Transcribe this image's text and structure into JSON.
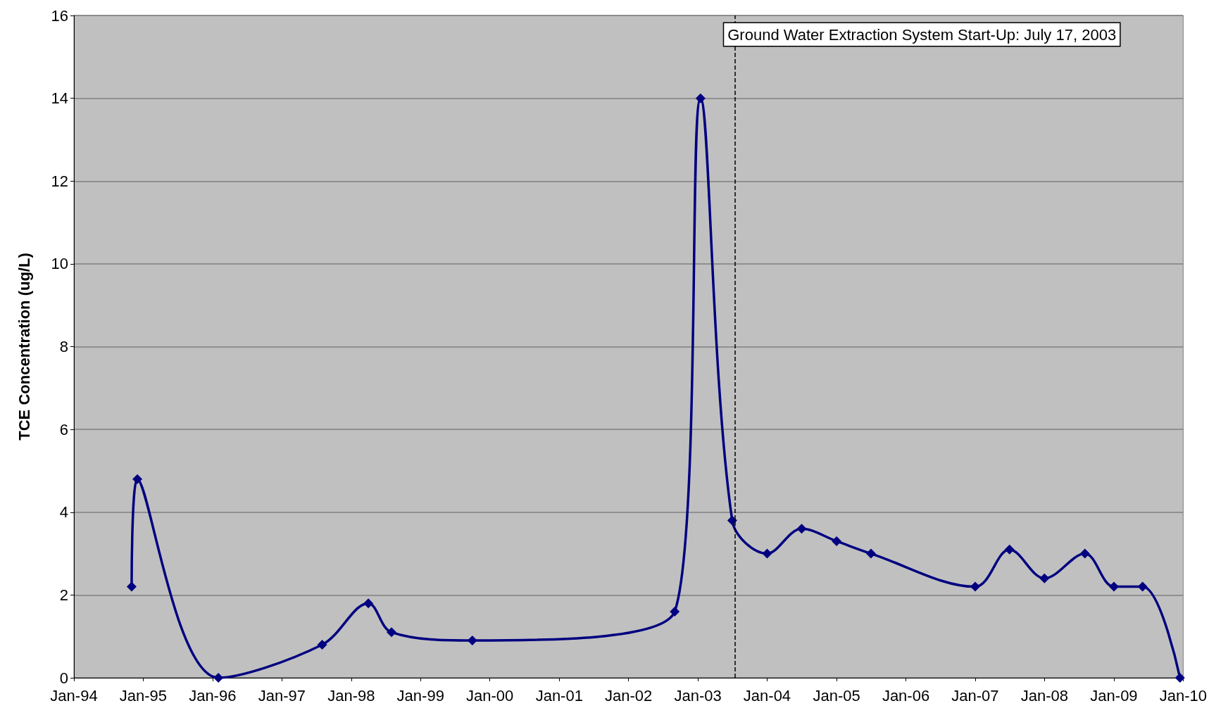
{
  "chart_data": {
    "type": "line",
    "ylabel": "TCE Concentration (ug/L)",
    "x": [
      "1994-11",
      "1994-12",
      "1996-02",
      "1997-08",
      "1998-04",
      "1998-08",
      "1999-10",
      "2002-09",
      "2003-01-15",
      "2003-07",
      "2004-01",
      "2004-07",
      "2005-01",
      "2005-07",
      "2007-01",
      "2007-07",
      "2008-01",
      "2008-08",
      "2009-01",
      "2009-06",
      "2009-12-15"
    ],
    "series": [
      {
        "color": "#000080",
        "values": [
          2.2,
          4.8,
          0,
          0.8,
          1.8,
          1.1,
          0.9,
          1.6,
          14,
          3.8,
          3.0,
          3.6,
          3.3,
          3.0,
          2.2,
          3.1,
          2.4,
          3.0,
          2.2,
          2.2,
          0
        ]
      }
    ],
    "xlim": [
      "1994-01",
      "2010-01"
    ],
    "xticks": [
      {
        "value": "1994-01",
        "label": "Jan-94"
      },
      {
        "value": "1995-01",
        "label": "Jan-95"
      },
      {
        "value": "1996-01",
        "label": "Jan-96"
      },
      {
        "value": "1997-01",
        "label": "Jan-97"
      },
      {
        "value": "1998-01",
        "label": "Jan-98"
      },
      {
        "value": "1999-01",
        "label": "Jan-99"
      },
      {
        "value": "2000-01",
        "label": "Jan-00"
      },
      {
        "value": "2001-01",
        "label": "Jan-01"
      },
      {
        "value": "2002-01",
        "label": "Jan-02"
      },
      {
        "value": "2003-01",
        "label": "Jan-03"
      },
      {
        "value": "2004-01",
        "label": "Jan-04"
      },
      {
        "value": "2005-01",
        "label": "Jan-05"
      },
      {
        "value": "2006-01",
        "label": "Jan-06"
      },
      {
        "value": "2007-01",
        "label": "Jan-07"
      },
      {
        "value": "2008-01",
        "label": "Jan-08"
      },
      {
        "value": "2009-01",
        "label": "Jan-09"
      },
      {
        "value": "2010-01",
        "label": "Jan-10"
      }
    ],
    "ylim": [
      0,
      16
    ],
    "yticks": [
      0,
      2,
      4,
      6,
      8,
      10,
      12,
      14,
      16
    ],
    "ref_lines": [
      {
        "axis": "x",
        "value": "2003-07-17",
        "label": "Ground Water Extraction System Start-Up: July 17, 2003",
        "color": "#000000",
        "line_style": "dashed"
      }
    ],
    "grid": "y",
    "marker": "diamond"
  }
}
